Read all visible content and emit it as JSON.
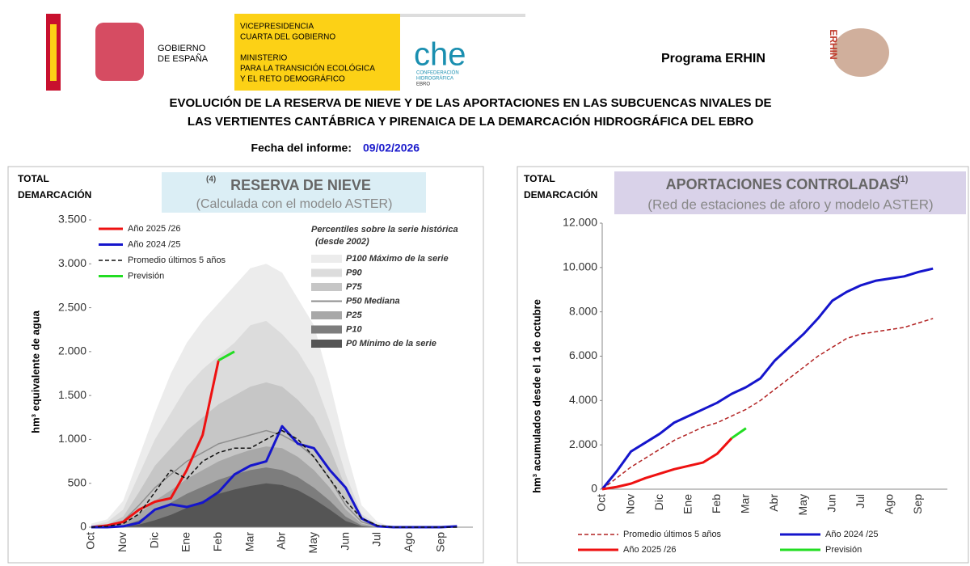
{
  "header": {
    "gobierno": [
      "GOBIERNO",
      "DE ESPAÑA"
    ],
    "ministerio": [
      "VICEPRESIDENCIA",
      "CUARTA DEL GOBIERNO",
      "MINISTERIO",
      "PARA LA TRANSICIÓN ECOLÓGICA",
      "Y EL RETO DEMOGRÁFICO"
    ],
    "che": "che",
    "che_sub": [
      "CONFEDERACIÓN",
      "HIDROGRÁFICA",
      "EBRO"
    ],
    "programa": "Programa ERHIN",
    "erhin": "ERHIN",
    "title": [
      "EVOLUCIÓN DE LA RESERVA DE NIEVE Y DE LAS APORTACIONES EN LAS SUBCUENCAS NIVALES DE",
      "LAS VERTIENTES CANTÁBRICA Y PIRENAICA DE LA DEMARCACIÓN HIDROGRÁFICA DEL EBRO"
    ],
    "fecha_label": "Fecha del informe:",
    "fecha": "09/02/2026"
  },
  "chart_data": [
    {
      "type": "line",
      "region": [
        "TOTAL",
        "DEMARCACIÓN"
      ],
      "note": "(4)",
      "title": "RESERVA DE NIEVE",
      "subtitle": "(Calculada con el modelo ASTER)",
      "y_label": "hm³ equivalente de agua",
      "categories": [
        "Oct",
        null,
        "Nov",
        null,
        "Dic",
        null,
        "Ene",
        null,
        "Feb",
        null,
        "Mar",
        null,
        "Abr",
        null,
        "May",
        null,
        "Jun",
        null,
        "Jul",
        null,
        "Ago",
        null,
        "Sep",
        null
      ],
      "ylim": [
        0,
        3500
      ],
      "yticks": [
        0,
        500,
        {
          "value": 1000,
          "label": "1.000"
        },
        {
          "value": 1500,
          "label": "1.500"
        },
        {
          "value": 2000,
          "label": "2.000"
        },
        {
          "value": 2500,
          "label": "2.500"
        },
        {
          "value": 3000,
          "label": "3.000"
        },
        {
          "value": 3500,
          "label": "3.500"
        }
      ],
      "grid": false,
      "percentiles_title": [
        "Percentiles sobre la serie histórica",
        "(desde 2002)"
      ],
      "percentiles": [
        {
          "name": "P100 Máximo de la serie",
          "color": "#ececec",
          "values": [
            40,
            90,
            300,
            800,
            1300,
            1750,
            2100,
            2350,
            2550,
            2750,
            2950,
            3000,
            2900,
            2600,
            2300,
            1650,
            900,
            250,
            60,
            0,
            0,
            0,
            0,
            0
          ]
        },
        {
          "name": "P90",
          "color": "#dcdcdc",
          "values": [
            20,
            60,
            200,
            600,
            1000,
            1300,
            1600,
            1800,
            1950,
            2100,
            2300,
            2350,
            2200,
            2000,
            1700,
            1200,
            600,
            150,
            30,
            0,
            0,
            0,
            0,
            0
          ]
        },
        {
          "name": "P75",
          "color": "#c6c6c6",
          "values": [
            10,
            30,
            120,
            400,
            700,
            900,
            1100,
            1250,
            1400,
            1500,
            1600,
            1650,
            1600,
            1450,
            1250,
            900,
            450,
            100,
            20,
            0,
            0,
            0,
            0,
            0
          ]
        },
        {
          "name": "P50 Mediana",
          "color": "#8f8f8f",
          "line": true,
          "values": [
            5,
            15,
            70,
            250,
            450,
            600,
            750,
            850,
            950,
            1000,
            1050,
            1100,
            1050,
            950,
            800,
            550,
            250,
            60,
            10,
            0,
            0,
            0,
            0,
            0
          ]
        },
        {
          "name": "P25",
          "color": "#a8a8a8",
          "values": [
            0,
            5,
            40,
            150,
            300,
            420,
            550,
            650,
            750,
            820,
            880,
            920,
            900,
            800,
            650,
            450,
            200,
            40,
            5,
            0,
            0,
            0,
            0,
            0
          ]
        },
        {
          "name": "P10",
          "color": "#7d7d7d",
          "values": [
            0,
            0,
            20,
            80,
            180,
            280,
            380,
            460,
            540,
            600,
            650,
            680,
            650,
            570,
            450,
            300,
            120,
            20,
            0,
            0,
            0,
            0,
            0,
            0
          ]
        },
        {
          "name": "P0 Mínimo de la serie",
          "color": "#555555",
          "values": [
            0,
            0,
            5,
            30,
            80,
            140,
            220,
            300,
            380,
            430,
            470,
            500,
            480,
            420,
            320,
            200,
            70,
            10,
            0,
            0,
            0,
            0,
            0,
            0
          ]
        }
      ],
      "series": [
        {
          "name": "Año 2025 /26",
          "color": "#ee1111",
          "values": [
            0,
            20,
            60,
            200,
            290,
            330,
            650,
            1050,
            1900,
            null,
            null,
            null,
            null,
            null,
            null,
            null,
            null,
            null,
            null,
            null,
            null,
            null,
            null,
            null
          ]
        },
        {
          "name": "Año 2024 /25",
          "color": "#1515cc",
          "values": [
            0,
            0,
            10,
            50,
            200,
            260,
            230,
            280,
            400,
            600,
            700,
            750,
            1150,
            950,
            900,
            650,
            450,
            100,
            10,
            0,
            0,
            0,
            0,
            10
          ]
        },
        {
          "name": "Promedio últimos 5 años",
          "color": "#111111",
          "dash": true,
          "values": [
            0,
            10,
            40,
            150,
            400,
            650,
            550,
            750,
            850,
            900,
            900,
            1000,
            1100,
            1000,
            800,
            550,
            300,
            100,
            20,
            0,
            0,
            0,
            0,
            0
          ]
        },
        {
          "name": "Previsión",
          "color": "#22dd22",
          "values": [
            null,
            null,
            null,
            null,
            null,
            null,
            null,
            null,
            1900,
            2000,
            null,
            null,
            null,
            null,
            null,
            null,
            null,
            null,
            null,
            null,
            null,
            null,
            null,
            null
          ]
        }
      ]
    },
    {
      "type": "line",
      "region": [
        "TOTAL",
        "DEMARCACIÓN"
      ],
      "title": "APORTACIONES CONTROLADAS",
      "note": "(1)",
      "subtitle": "(Red de estaciones de aforo y modelo ASTER)",
      "y_label": "hm³ acumulados desde el 1 de octubre",
      "categories": [
        "Oct",
        null,
        "Nov",
        null,
        "Dic",
        null,
        "Ene",
        null,
        "Feb",
        null,
        "Mar",
        null,
        "Abr",
        null,
        "May",
        null,
        "Jun",
        null,
        "Jul",
        null,
        "Ago",
        null,
        "Sep",
        null
      ],
      "ylim": [
        0,
        12000
      ],
      "yticks": [
        0,
        {
          "value": 2000,
          "label": "2.000"
        },
        {
          "value": 4000,
          "label": "4.000"
        },
        {
          "value": 6000,
          "label": "6.000"
        },
        {
          "value": 8000,
          "label": "8.000"
        },
        {
          "value": 10000,
          "label": "10.000"
        },
        {
          "value": 12000,
          "label": "12.000"
        }
      ],
      "grid": false,
      "series": [
        {
          "name": "Promedio últimos 5 años",
          "color": "#b22222",
          "dash": true,
          "values": [
            0,
            500,
            1000,
            1400,
            1800,
            2200,
            2500,
            2800,
            3000,
            3300,
            3600,
            4000,
            4500,
            5000,
            5500,
            6000,
            6400,
            6800,
            7000,
            7100,
            7200,
            7300,
            7500,
            7700
          ]
        },
        {
          "name": "Año 2024 /25",
          "color": "#1515cc",
          "values": [
            0,
            800,
            1700,
            2100,
            2500,
            3000,
            3300,
            3600,
            3900,
            4300,
            4600,
            5000,
            5800,
            6400,
            7000,
            7700,
            8500,
            8900,
            9200,
            9400,
            9500,
            9600,
            9800,
            9950
          ]
        },
        {
          "name": "Año 2025 /26",
          "color": "#ee1111",
          "values": [
            0,
            100,
            250,
            500,
            700,
            900,
            1050,
            1200,
            1600,
            2300,
            null,
            null,
            null,
            null,
            null,
            null,
            null,
            null,
            null,
            null,
            null,
            null,
            null,
            null
          ]
        },
        {
          "name": "Previsión",
          "color": "#22dd22",
          "values": [
            null,
            null,
            null,
            null,
            null,
            null,
            null,
            null,
            null,
            2300,
            2750,
            null,
            null,
            null,
            null,
            null,
            null,
            null,
            null,
            null,
            null,
            null,
            null,
            null
          ]
        }
      ]
    }
  ]
}
